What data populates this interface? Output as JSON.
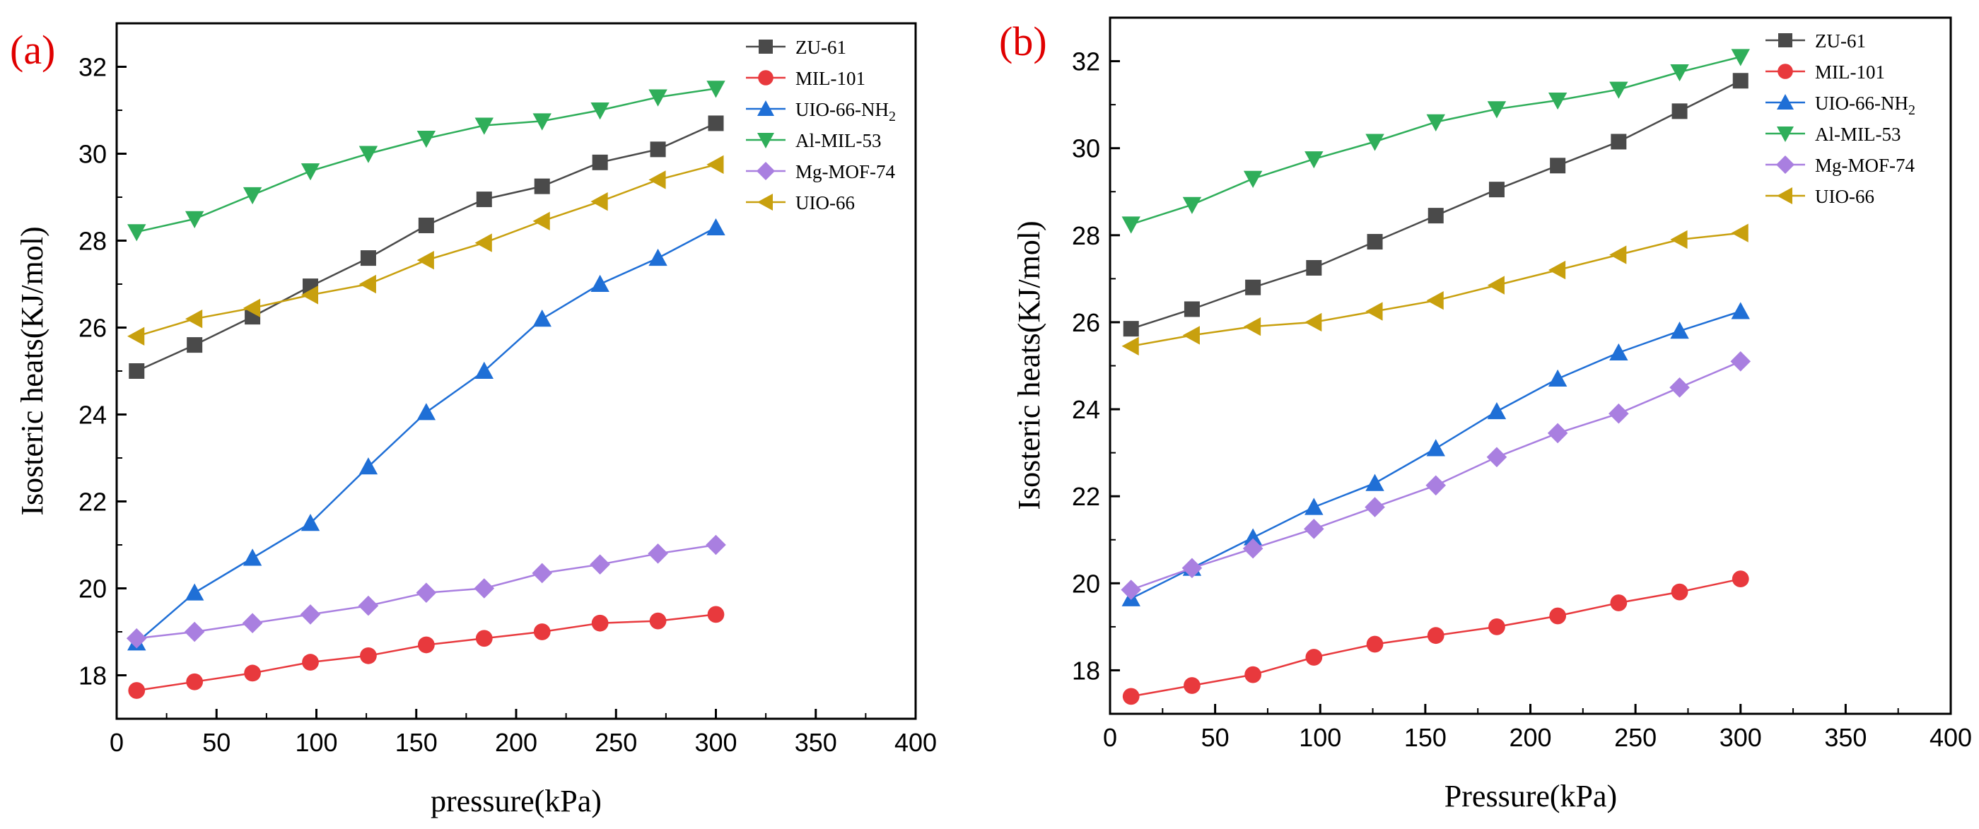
{
  "chart_data": [
    {
      "type": "line",
      "panel_label": "(a)",
      "xlabel": "pressure(kPa)",
      "ylabel": "Isosteric heats(KJ/mol)",
      "xlim": [
        0,
        400
      ],
      "ylim": [
        17,
        33
      ],
      "xticks": [
        0,
        50,
        100,
        150,
        200,
        250,
        300,
        350,
        400
      ],
      "yticks": [
        18,
        20,
        22,
        24,
        26,
        28,
        30,
        32
      ],
      "legend_position": "top-right",
      "x": [
        10,
        39,
        68,
        97,
        126,
        155,
        184,
        213,
        242,
        271,
        300
      ],
      "series": [
        {
          "name": "ZU-61",
          "sub": "",
          "marker": "square",
          "color": "#4a4a4a",
          "values": [
            25.0,
            25.6,
            26.25,
            26.95,
            27.6,
            28.35,
            28.95,
            29.25,
            29.8,
            30.1,
            30.7
          ]
        },
        {
          "name": "MIL-101",
          "sub": "",
          "marker": "circle",
          "color": "#e8393d",
          "values": [
            17.65,
            17.85,
            18.05,
            18.3,
            18.45,
            18.7,
            18.85,
            19.0,
            19.2,
            19.25,
            19.4
          ]
        },
        {
          "name": "UIO-66-NH",
          "sub": "2",
          "marker": "triangle-up",
          "color": "#1f6fd6",
          "values": [
            18.75,
            19.9,
            20.7,
            21.5,
            22.8,
            24.05,
            25.0,
            26.2,
            27.0,
            27.6,
            28.3
          ]
        },
        {
          "name": "Al-MIL-53",
          "sub": "",
          "marker": "triangle-down",
          "color": "#2fae5a",
          "values": [
            28.2,
            28.5,
            29.05,
            29.6,
            30.0,
            30.35,
            30.65,
            30.75,
            31.0,
            31.3,
            31.5
          ]
        },
        {
          "name": "Mg-MOF-74",
          "sub": "",
          "marker": "diamond",
          "color": "#a97fe0",
          "values": [
            18.85,
            19.0,
            19.2,
            19.4,
            19.6,
            19.9,
            20.0,
            20.35,
            20.55,
            20.8,
            21.0
          ]
        },
        {
          "name": "UIO-66",
          "sub": "",
          "marker": "triangle-left",
          "color": "#c8a00e",
          "values": [
            25.8,
            26.2,
            26.45,
            26.75,
            27.0,
            27.55,
            27.95,
            28.45,
            28.9,
            29.4,
            29.75
          ]
        }
      ]
    },
    {
      "type": "line",
      "panel_label": "(b)",
      "xlabel": "Pressure(kPa)",
      "ylabel": "Isosteric heats(KJ/mol)",
      "xlim": [
        0,
        400
      ],
      "ylim": [
        17,
        33
      ],
      "xticks": [
        0,
        50,
        100,
        150,
        200,
        250,
        300,
        350,
        400
      ],
      "yticks": [
        18,
        20,
        22,
        24,
        26,
        28,
        30,
        32
      ],
      "legend_position": "top-right",
      "x": [
        10,
        39,
        68,
        97,
        126,
        155,
        184,
        213,
        242,
        271,
        300
      ],
      "series": [
        {
          "name": "ZU-61",
          "sub": "",
          "marker": "square",
          "color": "#4a4a4a",
          "values": [
            25.85,
            26.3,
            26.8,
            27.25,
            27.85,
            28.45,
            29.05,
            29.6,
            30.15,
            30.85,
            31.55
          ]
        },
        {
          "name": "MIL-101",
          "sub": "",
          "marker": "circle",
          "color": "#e8393d",
          "values": [
            17.4,
            17.65,
            17.9,
            18.3,
            18.6,
            18.8,
            19.0,
            19.25,
            19.55,
            19.8,
            20.1
          ]
        },
        {
          "name": "UIO-66-NH",
          "sub": "2",
          "marker": "triangle-up",
          "color": "#1f6fd6",
          "values": [
            19.65,
            20.35,
            21.05,
            21.75,
            22.3,
            23.1,
            23.95,
            24.7,
            25.3,
            25.8,
            26.25
          ]
        },
        {
          "name": "Al-MIL-53",
          "sub": "",
          "marker": "triangle-down",
          "color": "#2fae5a",
          "values": [
            28.25,
            28.7,
            29.3,
            29.75,
            30.15,
            30.6,
            30.9,
            31.1,
            31.35,
            31.75,
            32.1
          ]
        },
        {
          "name": "Mg-MOF-74",
          "sub": "",
          "marker": "diamond",
          "color": "#a97fe0",
          "values": [
            19.85,
            20.35,
            20.8,
            21.25,
            21.75,
            22.25,
            22.9,
            23.45,
            23.9,
            24.5,
            25.1
          ]
        },
        {
          "name": "UIO-66",
          "sub": "",
          "marker": "triangle-left",
          "color": "#c8a00e",
          "values": [
            25.45,
            25.7,
            25.9,
            26.0,
            26.25,
            26.5,
            26.85,
            27.2,
            27.55,
            27.9,
            28.05
          ]
        }
      ]
    }
  ]
}
